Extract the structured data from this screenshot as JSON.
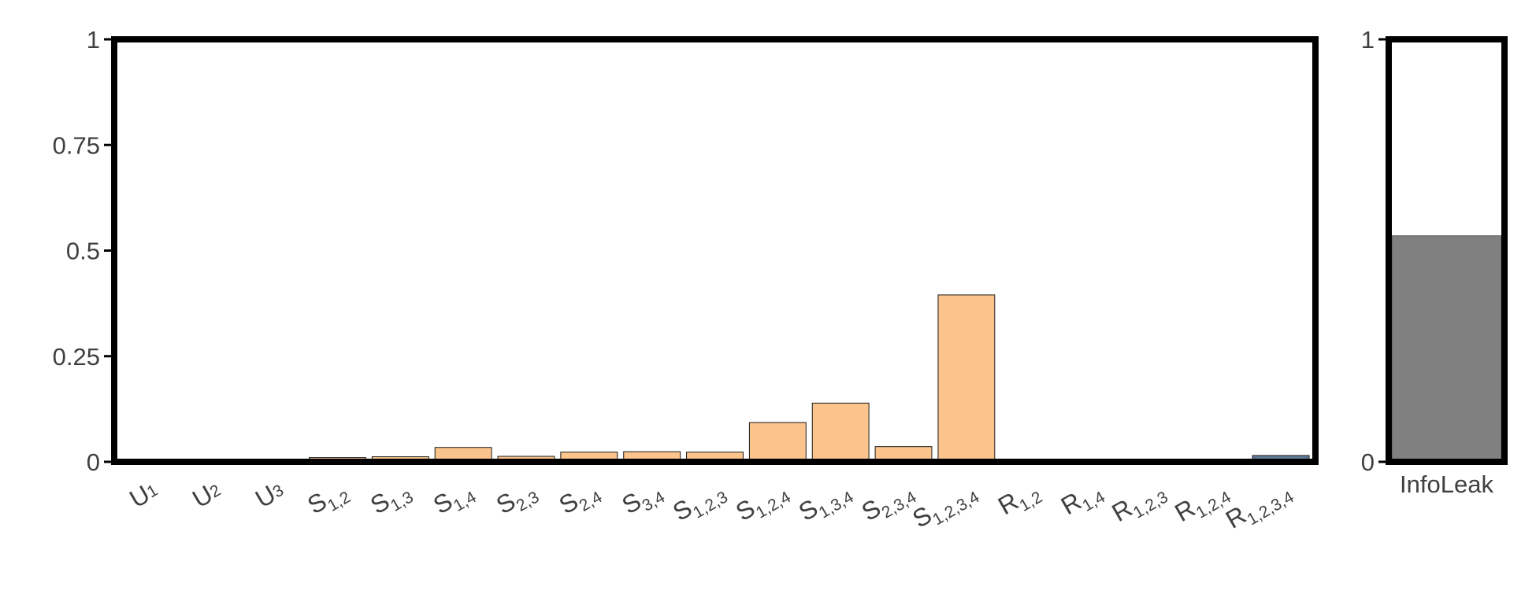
{
  "chart_data": [
    {
      "type": "bar",
      "title": "",
      "xlabel": "",
      "ylabel": "",
      "ylim": [
        0,
        1
      ],
      "yticks": [
        {
          "value": 0,
          "label": "0"
        },
        {
          "value": 0.25,
          "label": "0.25"
        },
        {
          "value": 0.5,
          "label": "0.5"
        },
        {
          "value": 0.75,
          "label": "0.75"
        },
        {
          "value": 1,
          "label": "1"
        }
      ],
      "grid": false,
      "categories": [
        {
          "base": "U",
          "sub": "1",
          "group": "unique"
        },
        {
          "base": "U",
          "sub": "2",
          "group": "unique"
        },
        {
          "base": "U",
          "sub": "3",
          "group": "unique"
        },
        {
          "base": "S",
          "sub": "1,2",
          "group": "synergy"
        },
        {
          "base": "S",
          "sub": "1,3",
          "group": "synergy"
        },
        {
          "base": "S",
          "sub": "1,4",
          "group": "synergy"
        },
        {
          "base": "S",
          "sub": "2,3",
          "group": "synergy"
        },
        {
          "base": "S",
          "sub": "2,4",
          "group": "synergy"
        },
        {
          "base": "S",
          "sub": "3,4",
          "group": "synergy"
        },
        {
          "base": "S",
          "sub": "1,2,3",
          "group": "synergy"
        },
        {
          "base": "S",
          "sub": "1,2,4",
          "group": "synergy"
        },
        {
          "base": "S",
          "sub": "1,3,4",
          "group": "synergy"
        },
        {
          "base": "S",
          "sub": "2,3,4",
          "group": "synergy"
        },
        {
          "base": "S",
          "sub": "1,2,3,4",
          "group": "synergy"
        },
        {
          "base": "R",
          "sub": "1,2",
          "group": "redundancy"
        },
        {
          "base": "R",
          "sub": "1,4",
          "group": "redundancy"
        },
        {
          "base": "R",
          "sub": "1,2,3",
          "group": "redundancy"
        },
        {
          "base": "R",
          "sub": "1,2,4",
          "group": "redundancy"
        },
        {
          "base": "R",
          "sub": "1,2,3,4",
          "group": "redundancy"
        }
      ],
      "values": [
        0.002,
        0.006,
        0.002,
        0.01,
        0.012,
        0.034,
        0.013,
        0.023,
        0.024,
        0.023,
        0.093,
        0.139,
        0.036,
        0.395,
        0.0,
        0.0,
        0.0,
        0.0,
        0.015
      ],
      "colors": {
        "unique": "#e8e8e8",
        "synergy": "#fac48c",
        "redundancy": "#5f7c99",
        "bar_outline": "#1a1a1a",
        "axis": "#000000",
        "text": "#404040"
      }
    },
    {
      "type": "bar",
      "title": "",
      "xlabel": "",
      "ylabel": "",
      "ylim": [
        0,
        1
      ],
      "yticks": [
        {
          "value": 0,
          "label": "0"
        },
        {
          "value": 1,
          "label": "1"
        }
      ],
      "grid": false,
      "categories": [
        "InfoLeak"
      ],
      "values": [
        0.535
      ],
      "colors": {
        "bar": "#808080",
        "bar_outline": "#555555",
        "axis": "#000000",
        "text": "#404040"
      }
    }
  ]
}
